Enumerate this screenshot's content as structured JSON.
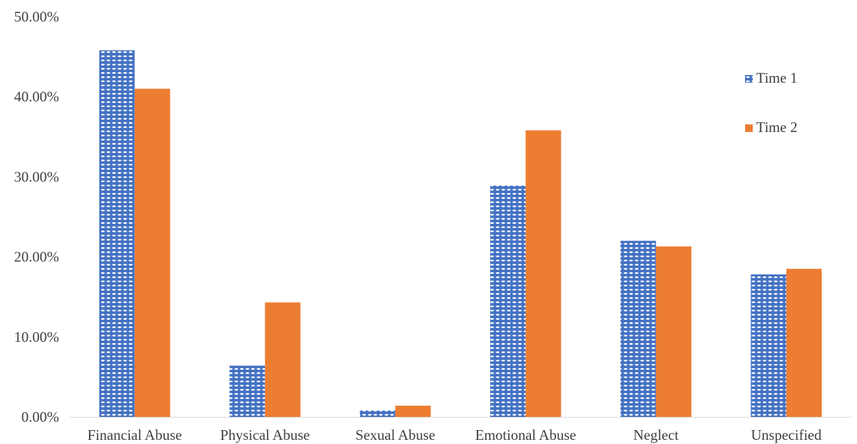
{
  "chart_data": {
    "type": "bar",
    "title": "",
    "xlabel": "",
    "ylabel": "",
    "categories": [
      "Financial Abuse",
      "Physical Abuse",
      "Sexual Abuse",
      "Emotional Abuse",
      "Neglect",
      "Unspecified"
    ],
    "series": [
      {
        "name": "Time 1",
        "values": [
          45.8,
          6.4,
          0.8,
          28.9,
          22.0,
          17.8
        ],
        "color": "#4472C4",
        "pattern": "dotted"
      },
      {
        "name": "Time 2",
        "values": [
          41.0,
          14.3,
          1.4,
          35.8,
          21.3,
          18.5
        ],
        "color": "#ED7D31",
        "pattern": "solid"
      }
    ],
    "ylim": [
      0,
      50
    ],
    "yticks": [
      0,
      10,
      20,
      30,
      40,
      50
    ],
    "ytick_labels": [
      "0.00%",
      "10.00%",
      "20.00%",
      "30.00%",
      "40.00%",
      "50.00%"
    ],
    "grid": false,
    "legend_position": "right"
  }
}
